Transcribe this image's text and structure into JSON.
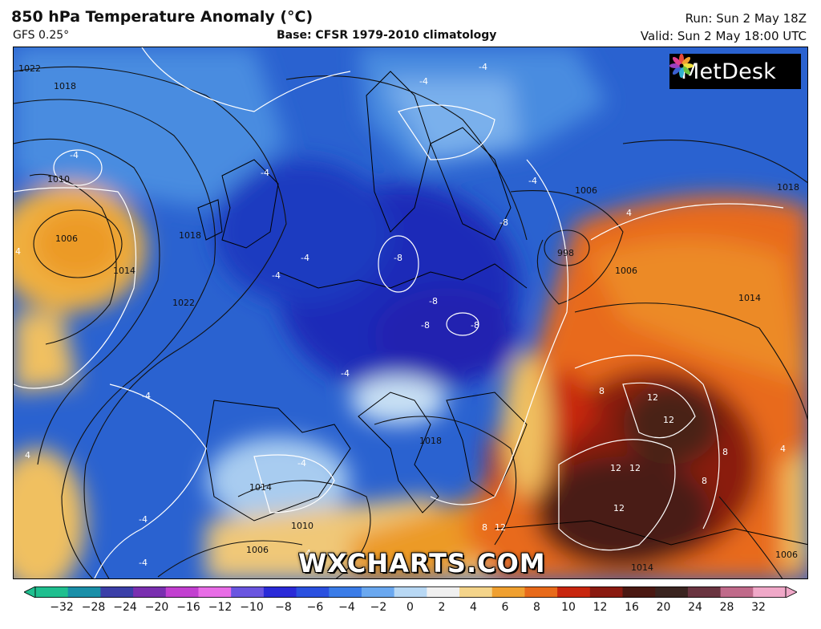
{
  "header": {
    "title": "850 hPa Temperature Anomaly (°C)",
    "model": "GFS 0.25°",
    "base": "Base: CFSR 1979-2010 climatology",
    "run": "Run: Sun 2 May 18Z",
    "valid": "Valid: Sun 2 May 18:00 UTC"
  },
  "logo": {
    "name": "MetDesk",
    "icon": "flower-logo-icon"
  },
  "watermark": "WXCHARTS.COM",
  "colorbar": {
    "ticks": [
      "−32",
      "−28",
      "−24",
      "−20",
      "−16",
      "−12",
      "−10",
      "−8",
      "−6",
      "−4",
      "−2",
      "0",
      "2",
      "4",
      "6",
      "8",
      "10",
      "12",
      "16",
      "20",
      "24",
      "28",
      "32"
    ],
    "colors": [
      "#1fbf8f",
      "#1a8fa8",
      "#3b3fa8",
      "#7a2fb0",
      "#c23fd0",
      "#e86ce6",
      "#6a55e0",
      "#2a2ad8",
      "#2a50e0",
      "#3a7ce8",
      "#6aa8f0",
      "#b8d8f4",
      "#f0f0f0",
      "#f4d48a",
      "#f0a030",
      "#e86a1a",
      "#c8260e",
      "#8a1a10",
      "#4a1812",
      "#3a2420",
      "#6a3440",
      "#c06a8a",
      "#f0a8c8"
    ]
  },
  "map": {
    "isobar_labels": [
      "1022",
      "1018",
      "1010",
      "1006",
      "1014",
      "1018",
      "1022",
      "1014",
      "1010",
      "1006",
      "1018",
      "1006",
      "998",
      "1006",
      "1014",
      "1018",
      "1014",
      "1006"
    ],
    "anomaly_labels": [
      "-4",
      "-4",
      "-4",
      "-4",
      "-4",
      "-4",
      "-4",
      "-4",
      "-4",
      "-4",
      "-8",
      "-8",
      "-8",
      "-8",
      "-8",
      "-4",
      "-4",
      "4",
      "8",
      "12",
      "12",
      "12",
      "12",
      "12",
      "8",
      "8",
      "12",
      "-4",
      "4",
      "4",
      "8",
      "4"
    ]
  }
}
